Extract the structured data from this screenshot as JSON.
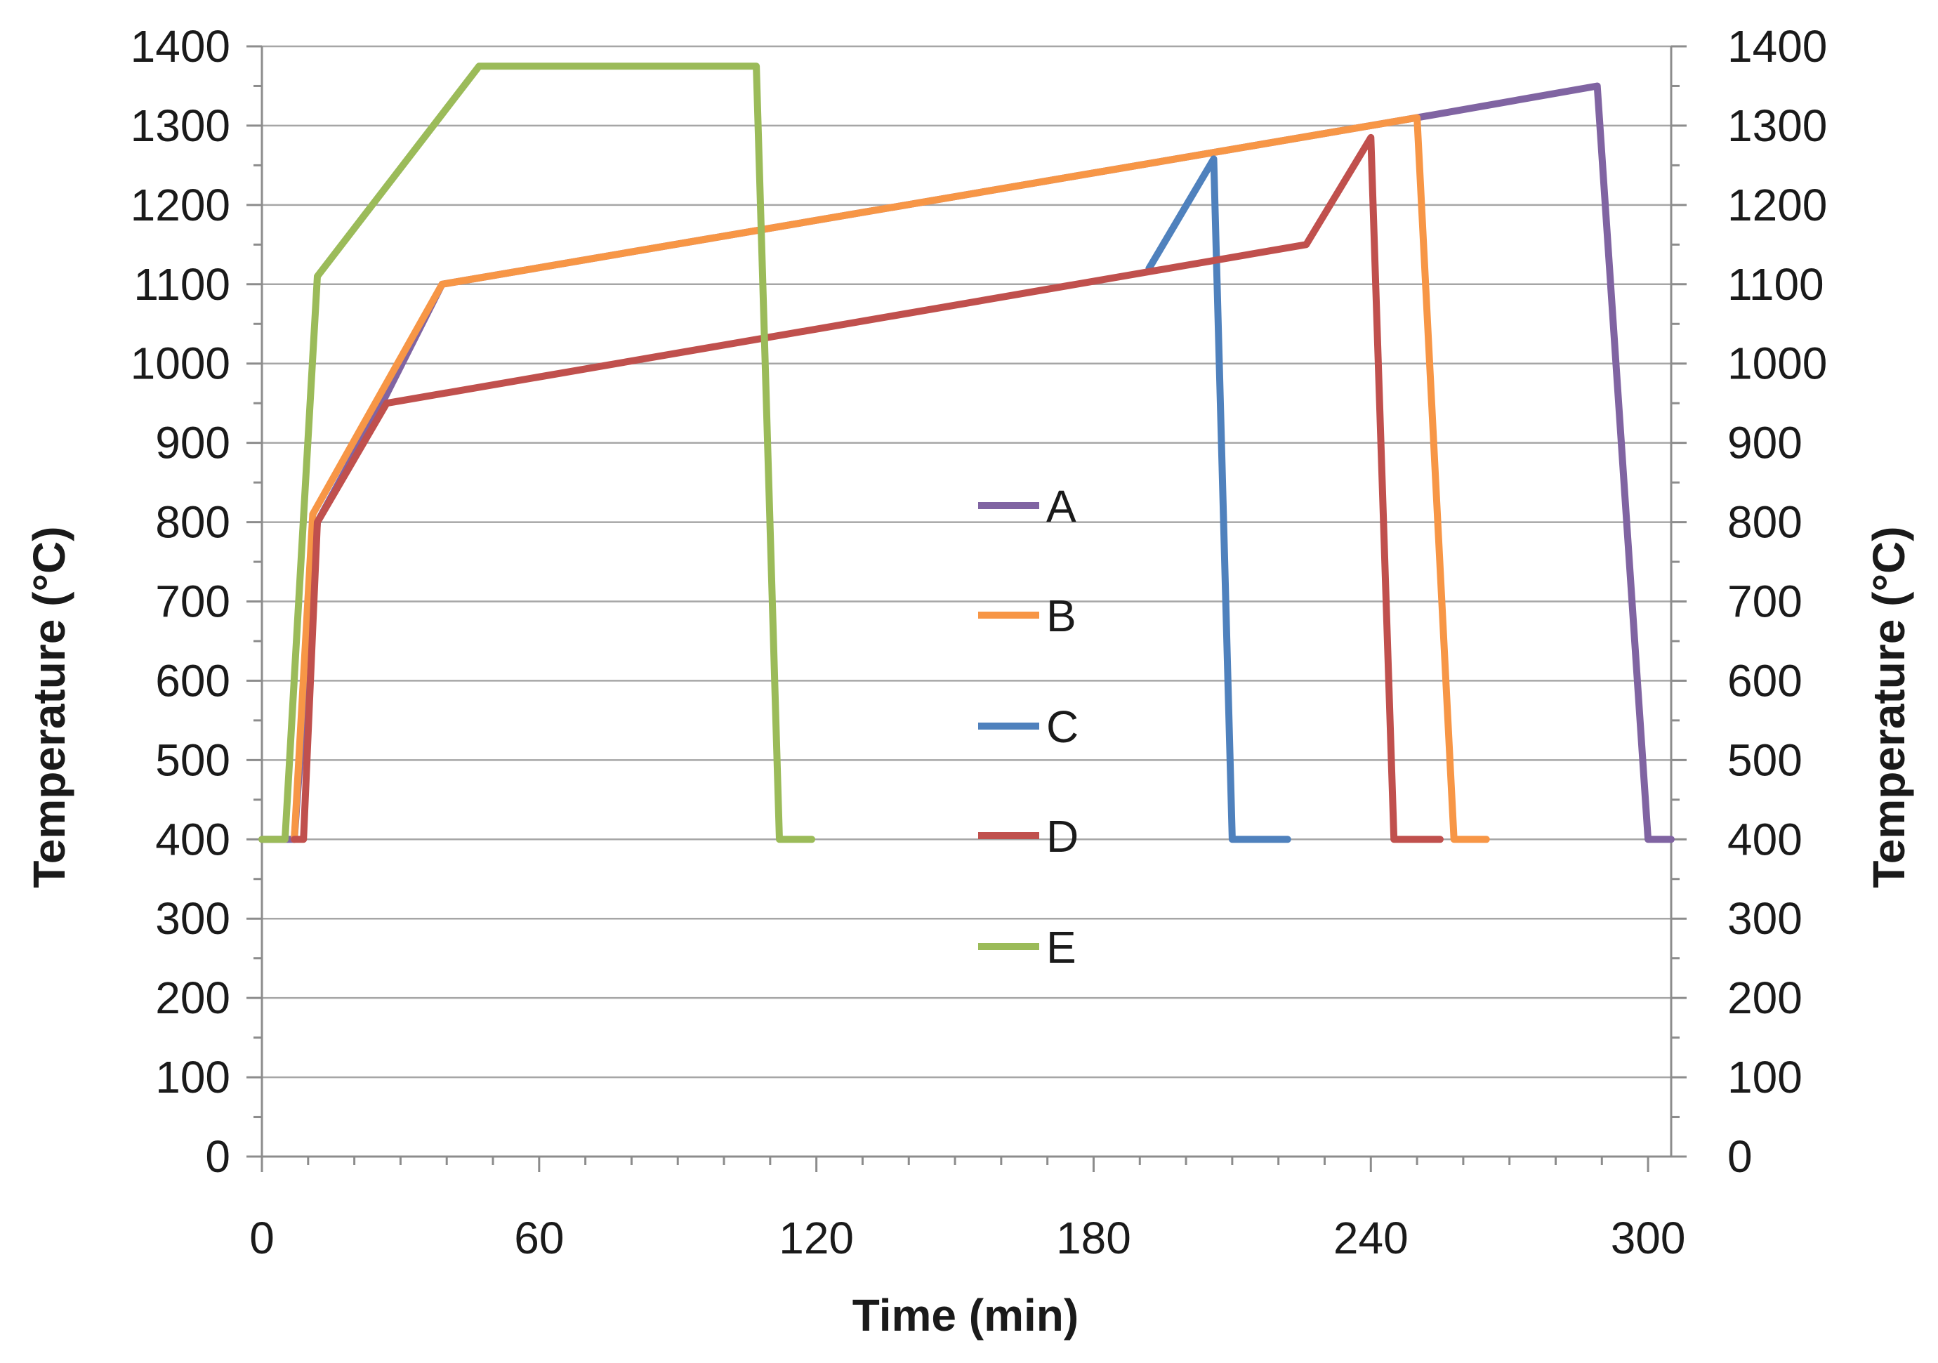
{
  "chart_data": {
    "type": "line",
    "title": "",
    "xlabel": "Time (min)",
    "ylabel": "Temperature (°C)",
    "ylabel_right": "Temperature (°C)",
    "xlim": [
      0,
      305
    ],
    "ylim": [
      0,
      1400
    ],
    "x_ticks": [
      0,
      60,
      120,
      180,
      240,
      300
    ],
    "y_ticks": [
      0,
      100,
      200,
      300,
      400,
      500,
      600,
      700,
      800,
      900,
      1000,
      1100,
      1200,
      1300,
      1400
    ],
    "grid": true,
    "legend_position": "center",
    "series": [
      {
        "name": "A",
        "color": "#8064A2",
        "points": [
          [
            0,
            400
          ],
          [
            7,
            400
          ],
          [
            12,
            800
          ],
          [
            26,
            950
          ],
          [
            39,
            1100
          ],
          [
            250,
            1310
          ],
          [
            289,
            1350
          ],
          [
            300,
            400
          ],
          [
            305,
            400
          ]
        ]
      },
      {
        "name": "B",
        "color": "#F79646",
        "points": [
          [
            7,
            400
          ],
          [
            11,
            810
          ],
          [
            39,
            1100
          ],
          [
            250,
            1310
          ],
          [
            258,
            400
          ],
          [
            265,
            400
          ]
        ]
      },
      {
        "name": "C",
        "color": "#4F81BD",
        "points": [
          [
            192,
            1120
          ],
          [
            206,
            1258
          ],
          [
            210,
            400
          ],
          [
            222,
            400
          ]
        ]
      },
      {
        "name": "D",
        "color": "#C0504D",
        "points": [
          [
            7,
            400
          ],
          [
            9,
            400
          ],
          [
            12,
            800
          ],
          [
            27,
            950
          ],
          [
            226,
            1150
          ],
          [
            240,
            1285
          ],
          [
            245,
            400
          ],
          [
            255,
            400
          ]
        ]
      },
      {
        "name": "E",
        "color": "#9BBB59",
        "points": [
          [
            0,
            400
          ],
          [
            5,
            400
          ],
          [
            12,
            1110
          ],
          [
            47,
            1375
          ],
          [
            107,
            1375
          ],
          [
            112,
            400
          ],
          [
            119,
            400
          ]
        ]
      }
    ]
  }
}
